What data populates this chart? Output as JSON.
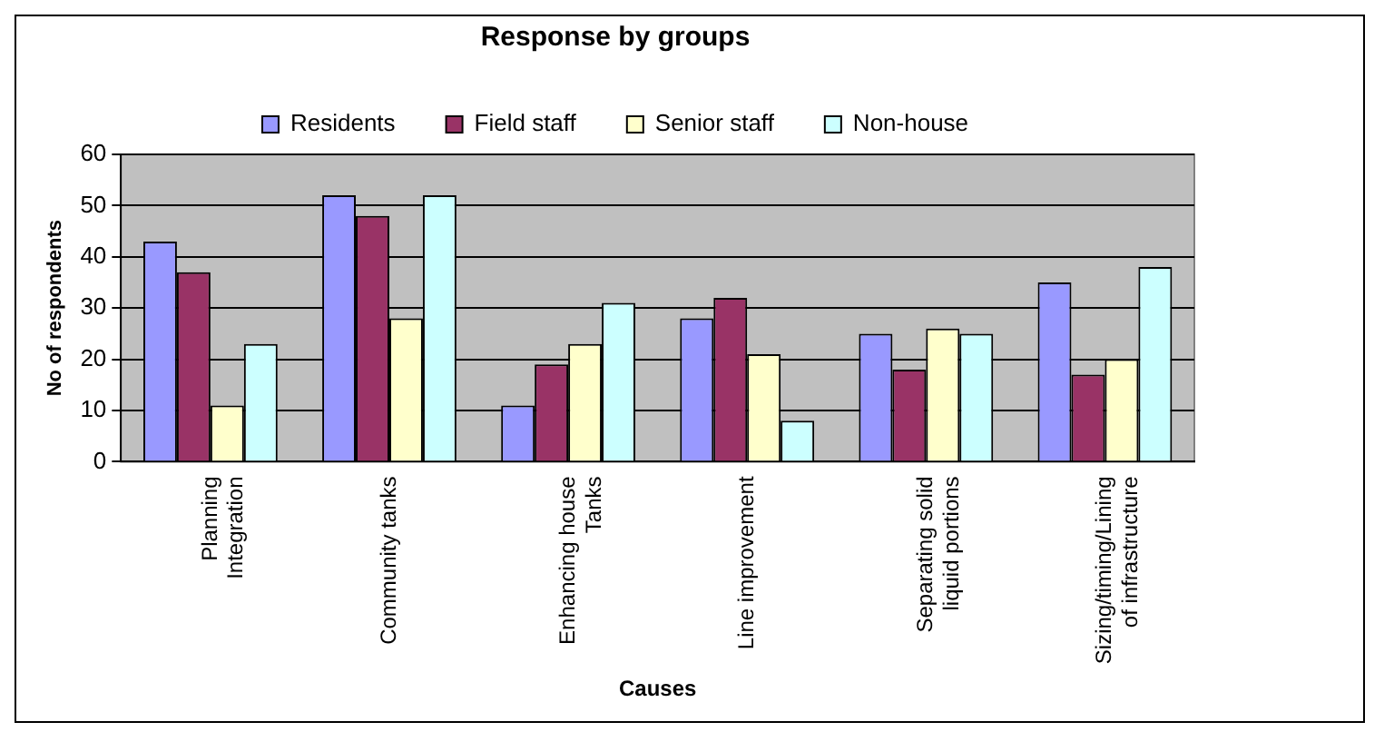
{
  "chart_data": {
    "type": "bar",
    "title": "Response by groups",
    "xlabel": "Causes",
    "ylabel": "No of respondents",
    "categories": [
      "Planning\nIntegration",
      "Community tanks",
      "Enhancing house\nTanks",
      "Line improvement",
      "Separating solid\nliquid portions",
      "Sizing/timing/Lining\nof infrastructure"
    ],
    "series": [
      {
        "name": "Residents",
        "color": "#9999ff",
        "values": [
          43,
          52,
          11,
          28,
          25,
          35
        ]
      },
      {
        "name": "Field staff",
        "color": "#993366",
        "values": [
          37,
          48,
          19,
          32,
          18,
          17
        ]
      },
      {
        "name": "Senior staff",
        "color": "#ffffcc",
        "values": [
          11,
          28,
          23,
          21,
          26,
          20
        ]
      },
      {
        "name": "Non-house",
        "color": "#ccffff",
        "values": [
          23,
          52,
          31,
          8,
          25,
          38
        ]
      }
    ],
    "ylim": [
      0,
      60
    ],
    "yticks": [
      0,
      10,
      20,
      30,
      40,
      50,
      60
    ],
    "grid": "y",
    "legend": "top"
  }
}
